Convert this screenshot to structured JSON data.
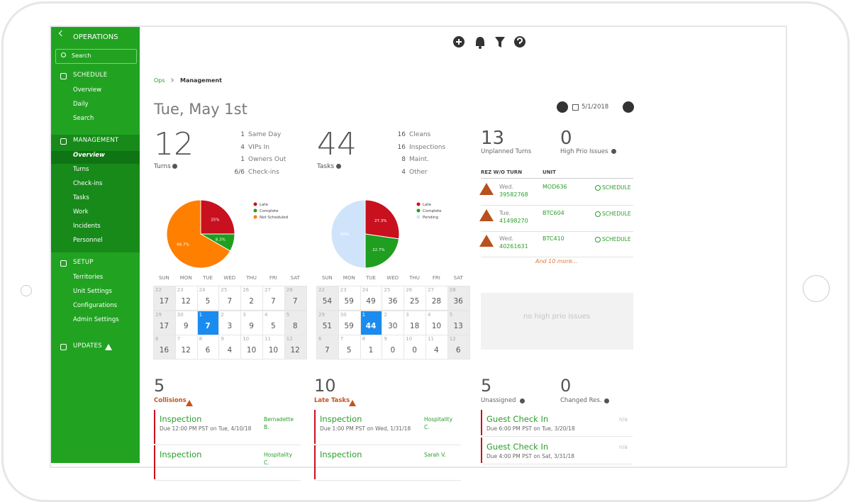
{
  "sidebar": {
    "title": "OPERATIONS",
    "search": "Search",
    "sections": [
      {
        "label": "SCHEDULE",
        "items": [
          "Overview",
          "Daily",
          "Search"
        ]
      },
      {
        "label": "MANAGEMENT",
        "items": [
          "Overview",
          "Turns",
          "Check-ins",
          "Tasks",
          "Work",
          "Incidents",
          "Personnel"
        ]
      },
      {
        "label": "SETUP",
        "items": [
          "Territories",
          "Unit Settings",
          "Configurations",
          "Admin Settings"
        ]
      },
      {
        "label": "UPDATES",
        "items": []
      }
    ]
  },
  "breadcrumb": [
    "Ops",
    "Management"
  ],
  "date_title": "Tue, May 1st",
  "date_nav": "5/1/2018",
  "summaries": [
    {
      "value": 12,
      "label": "Turns",
      "rows": [
        {
          "count": 1,
          "label": "Same Day"
        },
        {
          "count": 4,
          "label": "VIPs In"
        },
        {
          "count": 1,
          "label": "Owners Out"
        },
        {
          "count": "6/6",
          "label": "Check-ins"
        }
      ]
    },
    {
      "value": 44,
      "label": "Tasks",
      "rows": [
        {
          "count": 16,
          "label": "Cleans"
        },
        {
          "count": 16,
          "label": "Inspections"
        },
        {
          "count": 8,
          "label": "Maint."
        },
        {
          "count": 4,
          "label": "Other"
        }
      ]
    }
  ],
  "pies": [
    {
      "type": "pie",
      "categories": [
        "Late",
        "Complete",
        "Not Scheduled"
      ],
      "values": [
        25,
        8.3,
        66.7
      ],
      "value_labels": [
        "25%",
        "8.3%",
        "66.7%"
      ],
      "colors": [
        "#c8101e",
        "#1f9e1f",
        "#ff7f00"
      ]
    },
    {
      "type": "pie",
      "categories": [
        "Late",
        "Complete",
        "Pending"
      ],
      "values": [
        27.3,
        22.7,
        50
      ],
      "value_labels": [
        "27.3%",
        "22.7%",
        "50%"
      ],
      "colors": [
        "#c8101e",
        "#1f9e1f",
        "#cfe4fa"
      ]
    }
  ],
  "calendar_weekdays": [
    "SUN",
    "MON",
    "TUE",
    "WED",
    "THU",
    "FRI",
    "SAT"
  ],
  "calendars": [
    {
      "weeks": [
        {
          "dates": [
            22,
            23,
            24,
            25,
            26,
            27,
            28
          ],
          "counts": [
            17,
            12,
            5,
            7,
            2,
            7,
            7
          ]
        },
        {
          "dates": [
            29,
            30,
            1,
            2,
            3,
            4,
            5
          ],
          "counts": [
            17,
            9,
            7,
            3,
            9,
            5,
            8
          ]
        },
        {
          "dates": [
            6,
            7,
            8,
            9,
            10,
            11,
            12
          ],
          "counts": [
            16,
            12,
            6,
            4,
            10,
            10,
            12
          ]
        }
      ]
    },
    {
      "weeks": [
        {
          "dates": [
            22,
            23,
            24,
            25,
            26,
            27,
            28
          ],
          "counts": [
            54,
            59,
            49,
            36,
            25,
            28,
            36
          ]
        },
        {
          "dates": [
            29,
            30,
            1,
            2,
            3,
            4,
            5
          ],
          "counts": [
            51,
            59,
            44,
            30,
            18,
            10,
            13
          ]
        },
        {
          "dates": [
            6,
            7,
            8,
            9,
            10,
            11,
            12
          ],
          "counts": [
            7,
            5,
            1,
            0,
            0,
            4,
            6
          ]
        }
      ]
    }
  ],
  "issues": {
    "stats": [
      {
        "value": 13,
        "label": "Unplanned Turns"
      },
      {
        "value": 0,
        "label": "High Prio Issues"
      }
    ],
    "columns": [
      "REZ W/O TURN",
      "UNIT"
    ],
    "rows": [
      {
        "day": "Wed.",
        "rez": "39582768",
        "unit": "MOD636",
        "action": "SCHEDULE"
      },
      {
        "day": "Tue.",
        "rez": "41498270",
        "unit": "BTC604",
        "action": "SCHEDULE"
      },
      {
        "day": "Wed.",
        "rez": "40261631",
        "unit": "BTC410",
        "action": "SCHEDULE"
      }
    ],
    "more": "And 10 more...",
    "empty": "no high prio issues"
  },
  "panels": [
    {
      "stats": [
        {
          "value": 5,
          "label": "Collisions"
        }
      ],
      "items": [
        {
          "title": "Inspection",
          "due": "Due 12:00 PM PST on Tue, 4/10/18",
          "assignee": "Bernadette B."
        },
        {
          "title": "Inspection",
          "assignee": "Hospitality C."
        }
      ]
    },
    {
      "stats": [
        {
          "value": 10,
          "label": "Late Tasks"
        }
      ],
      "items": [
        {
          "title": "Inspection",
          "due": "Due 1:00 PM PST on Wed, 1/31/18",
          "assignee": "Hospitality C."
        },
        {
          "title": "Inspection",
          "assignee": "Sarah V."
        }
      ]
    },
    {
      "stats": [
        {
          "value": 5,
          "label": "Unassigned"
        },
        {
          "value": 0,
          "label": "Changed Res."
        }
      ],
      "items": [
        {
          "title": "Guest Check In",
          "due": "Due 6:00 PM PST on Tue, 3/20/18",
          "assignee": "n/a"
        },
        {
          "title": "Guest Check In",
          "due": "Due 4:00 PM PST on Sat, 3/31/18",
          "assignee": "n/a"
        }
      ]
    }
  ]
}
